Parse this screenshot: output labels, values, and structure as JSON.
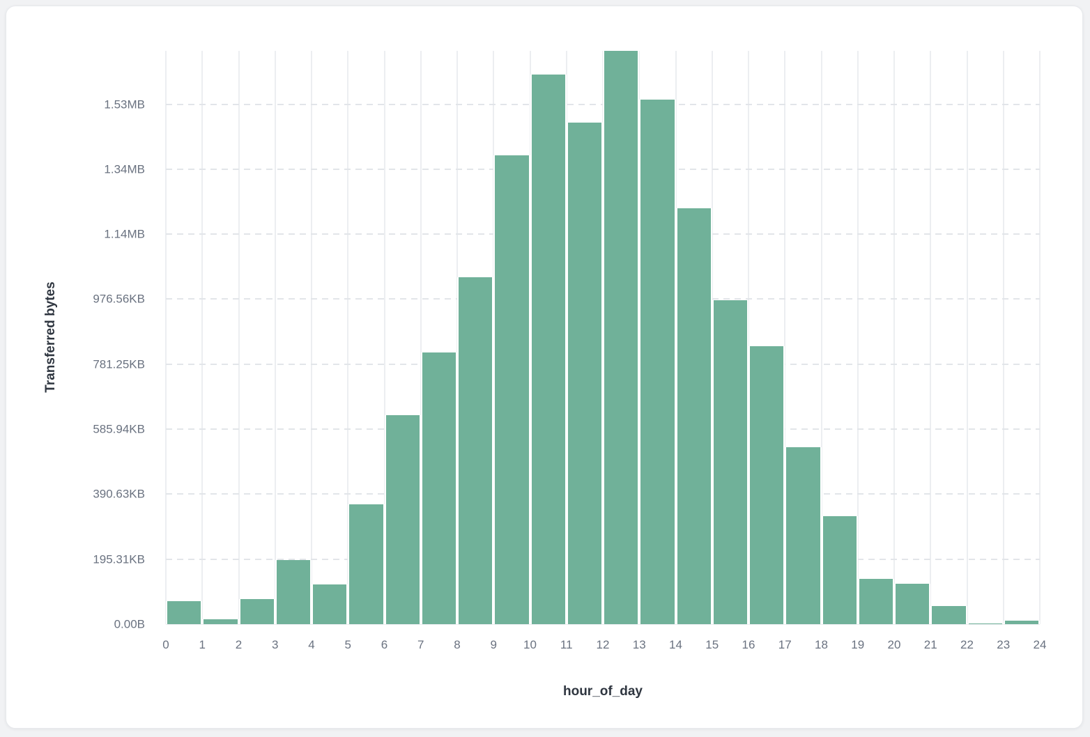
{
  "page": {
    "background_color": "#f1f2f4",
    "card_background_color": "#ffffff",
    "card_border_color": "#e7e9ec"
  },
  "chart_data": {
    "type": "bar",
    "subtype": "histogram",
    "title": "",
    "xlabel": "hour_of_day",
    "ylabel": "Transferred bytes",
    "bar_color": "#70b199",
    "grid": true,
    "legend_position": "none",
    "xlim": [
      0,
      24
    ],
    "ylim_bytes": [
      0,
      1764000
    ],
    "x_ticks": [
      "0",
      "1",
      "2",
      "3",
      "4",
      "5",
      "6",
      "7",
      "8",
      "9",
      "10",
      "11",
      "12",
      "13",
      "14",
      "15",
      "16",
      "17",
      "18",
      "19",
      "20",
      "21",
      "22",
      "23",
      "24"
    ],
    "y_ticks": [
      {
        "label": "0.00B",
        "value": 0
      },
      {
        "label": "195.31KB",
        "value": 200000
      },
      {
        "label": "390.63KB",
        "value": 400000
      },
      {
        "label": "585.94KB",
        "value": 600000
      },
      {
        "label": "781.25KB",
        "value": 800000
      },
      {
        "label": "976.56KB",
        "value": 1000000
      },
      {
        "label": "1.14MB",
        "value": 1200000
      },
      {
        "label": "1.34MB",
        "value": 1400000
      },
      {
        "label": "1.53MB",
        "value": 1600000
      }
    ],
    "series": [
      {
        "name": "Transferred bytes",
        "bin_start_hours": [
          0,
          1,
          2,
          3,
          4,
          5,
          6,
          7,
          8,
          9,
          10,
          11,
          12,
          13,
          14,
          15,
          16,
          17,
          18,
          19,
          20,
          21,
          22,
          23
        ],
        "values_bytes": [
          71000,
          14000,
          78000,
          197000,
          123000,
          368000,
          643000,
          837000,
          1068000,
          1443000,
          1691000,
          1544000,
          1764000,
          1614000,
          1280000,
          996000,
          855000,
          545000,
          332000,
          139000,
          124000,
          55000,
          2000,
          11000
        ]
      }
    ],
    "colors": {
      "tick_label": "#6a7280",
      "axis_title": "#2f3640",
      "vertical_gridline": "#eceef1",
      "horizontal_gridline": "#e2e5e9"
    }
  }
}
